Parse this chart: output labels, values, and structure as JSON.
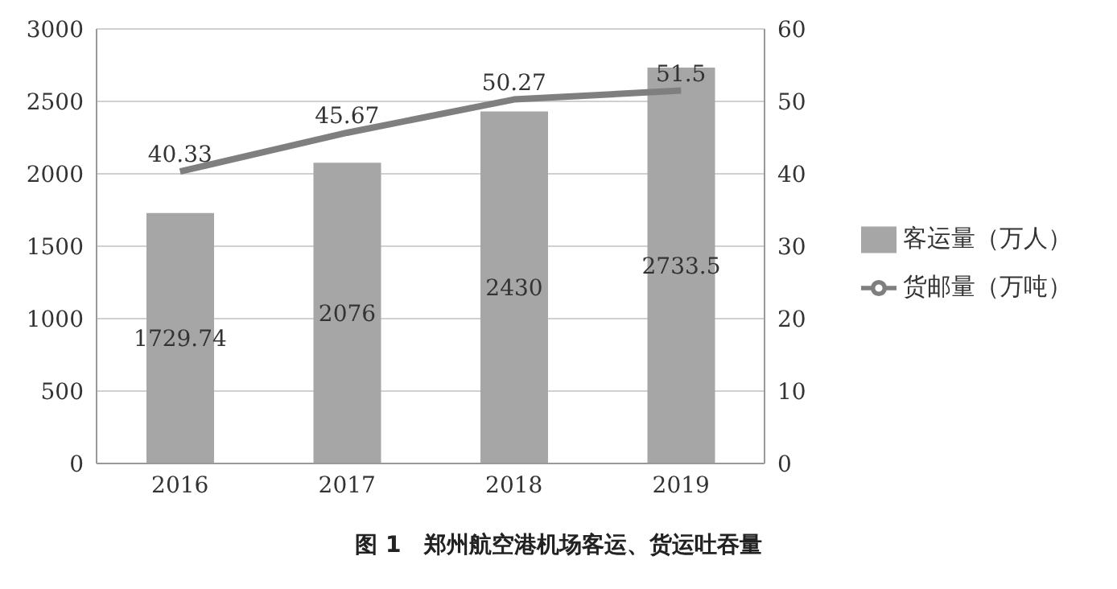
{
  "chart_data": {
    "type": "bar",
    "title": "图 1　郑州航空港机场客运、货运吐吞量",
    "categories": [
      "2016",
      "2017",
      "2018",
      "2019"
    ],
    "series": [
      {
        "name": "客运量（万人）",
        "color": "#a6a6a6",
        "values": [
          1729.74,
          2076,
          2430,
          2733.5
        ]
      },
      {
        "name": "货邮量（万吨）",
        "color": "#7f7f7f",
        "type": "line",
        "axis": "y2",
        "values": [
          40.33,
          45.67,
          50.27,
          51.5
        ]
      }
    ],
    "ylim": [
      0,
      3000
    ],
    "yticks": [
      0,
      500,
      1000,
      1500,
      2000,
      2500,
      3000
    ],
    "y2lim": [
      0,
      60
    ],
    "y2ticks": [
      0,
      10,
      20,
      30,
      40,
      50,
      60
    ],
    "grid": "y",
    "legend": "right",
    "data_labels": true,
    "marker": "none",
    "line_style": "solid"
  }
}
